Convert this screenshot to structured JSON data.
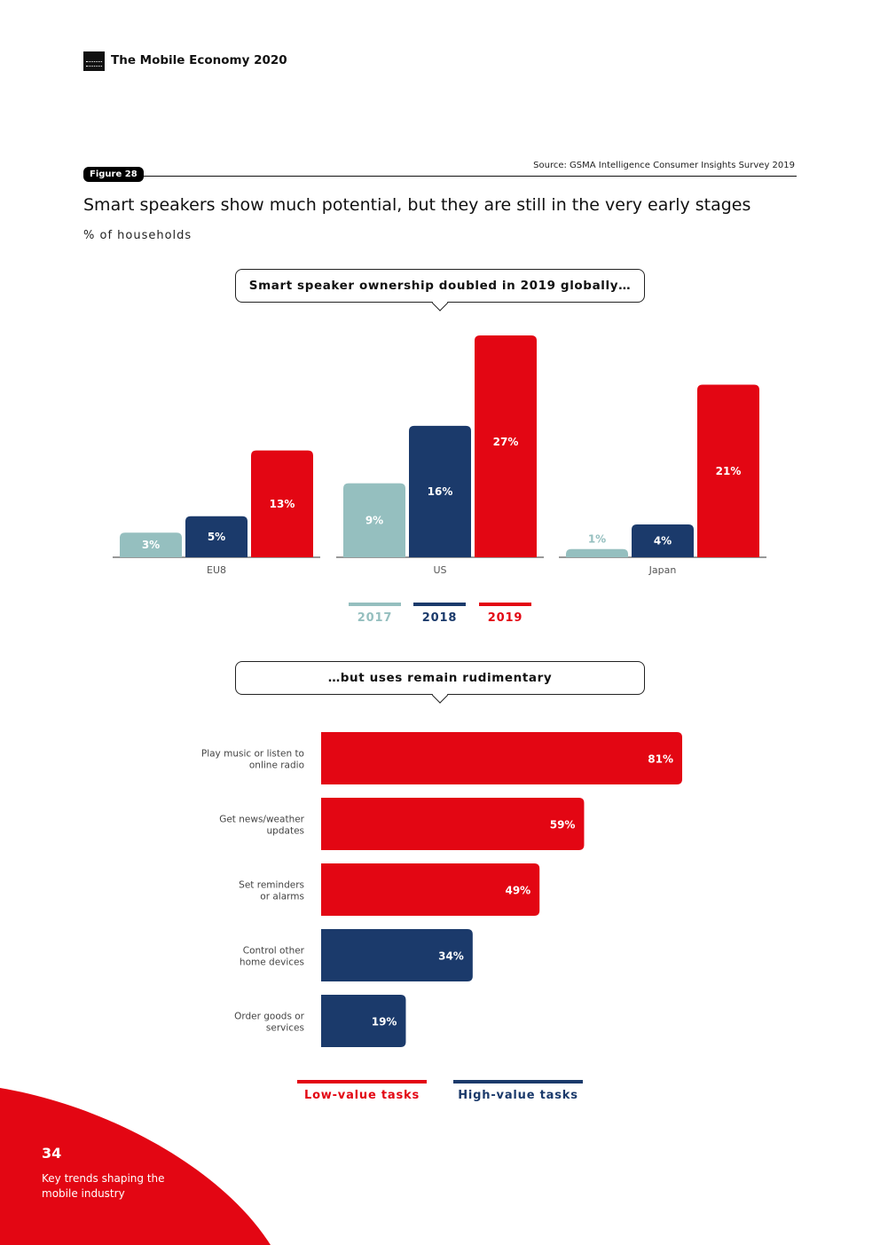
{
  "header": {
    "title": "The Mobile Economy 2020"
  },
  "source": "Source: GSMA Intelligence Consumer Insights Survey 2019",
  "figure_label": "Figure 28",
  "title": "Smart speakers show much potential, but they are still in the very early stages",
  "subtitle": "% of households",
  "callout_top": "Smart speaker ownership doubled in 2019 globally…",
  "callout_bottom": "…but uses remain rudimentary",
  "colors": {
    "2017": "#95bfbf",
    "2018": "#1b3a6b",
    "2019": "#e30613",
    "low": "#e30613",
    "high": "#1b3a6b"
  },
  "legend_top": [
    "2017",
    "2018",
    "2019"
  ],
  "legend_bottom": {
    "low": "Low-value tasks",
    "high": "High-value tasks"
  },
  "footer": {
    "page_number": "34",
    "section": "Key trends shaping the mobile industry"
  },
  "chart_data": [
    {
      "type": "bar",
      "categories": [
        "EU8",
        "US",
        "Japan"
      ],
      "series": [
        {
          "name": "2017",
          "values": [
            3,
            9,
            1
          ]
        },
        {
          "name": "2018",
          "values": [
            5,
            16,
            4
          ]
        },
        {
          "name": "2019",
          "values": [
            13,
            27,
            21
          ]
        }
      ],
      "value_labels": [
        [
          "3%",
          "9%",
          "1%"
        ],
        [
          "5%",
          "16%",
          "4%"
        ],
        [
          "13%",
          "27%",
          "21%"
        ]
      ],
      "ylim": [
        0,
        27
      ],
      "legend": "bottom-center",
      "grid": false
    },
    {
      "type": "bar",
      "orientation": "horizontal",
      "categories": [
        "Play music or listen to online radio",
        "Get news/weather updates",
        "Set reminders or alarms",
        "Control other home devices",
        "Order goods or services"
      ],
      "category_lines": [
        [
          "Play music or listen to",
          "online radio"
        ],
        [
          "Get news/weather",
          "updates"
        ],
        [
          "Set reminders",
          "or alarms"
        ],
        [
          "Control other",
          "home devices"
        ],
        [
          "Order goods or",
          "services"
        ]
      ],
      "values": [
        81,
        59,
        49,
        34,
        19
      ],
      "value_labels": [
        "81%",
        "59%",
        "49%",
        "34%",
        "19%"
      ],
      "groups": [
        "low",
        "low",
        "low",
        "high",
        "high"
      ],
      "xlim": [
        0,
        81
      ],
      "legend": "bottom-center",
      "grid": false
    }
  ]
}
